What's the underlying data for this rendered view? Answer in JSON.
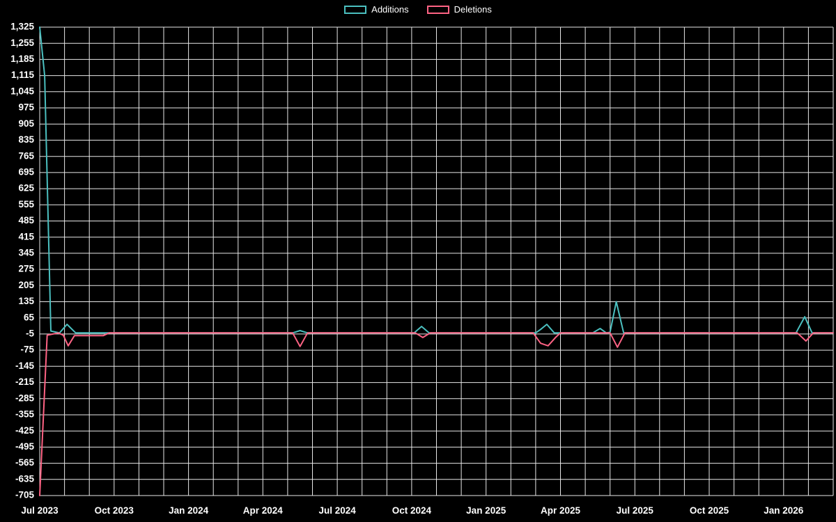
{
  "colors": {
    "background": "#000000",
    "grid": "#e8e8e8",
    "text": "#ffffff",
    "additions": "#4bc0c0",
    "deletions": "#ff6384"
  },
  "chart_data": {
    "type": "line",
    "title": "",
    "grid": true,
    "legend_position": "top",
    "grid_color": "#e8e8e8",
    "text_color": "#ffffff",
    "legend": [
      {
        "label": "Additions",
        "color": "#4bc0c0"
      },
      {
        "label": "Deletions",
        "color": "#ff6384"
      }
    ],
    "x_domain": [
      0,
      32
    ],
    "x_axis": {
      "labels": [
        "Jul 2023",
        "Oct 2023",
        "Jan 2024",
        "Apr 2024",
        "Jul 2024",
        "Oct 2024",
        "Jan 2025",
        "Apr 2025",
        "Jul 2025",
        "Oct 2025",
        "Jan 2026"
      ],
      "offsets": [
        0,
        3,
        6,
        9,
        12,
        15,
        18,
        21,
        24,
        27,
        30
      ]
    },
    "y_axis": {
      "min": -705,
      "max": 1325,
      "tick_step": 70,
      "ticks": [
        1325,
        1255,
        1185,
        1115,
        1045,
        975,
        905,
        835,
        765,
        695,
        625,
        555,
        485,
        415,
        345,
        275,
        205,
        135,
        65,
        -5,
        -75,
        -145,
        -215,
        -285,
        -355,
        -425,
        -495,
        -565,
        -635,
        -705
      ]
    },
    "series": [
      {
        "name": "Additions",
        "color": "#4bc0c0",
        "points": [
          [
            0,
            1325
          ],
          [
            0.2,
            1115
          ],
          [
            0.45,
            8
          ],
          [
            0.8,
            0
          ],
          [
            1.1,
            37
          ],
          [
            1.45,
            0
          ],
          [
            10.2,
            0
          ],
          [
            10.5,
            10
          ],
          [
            10.8,
            0
          ],
          [
            15.1,
            0
          ],
          [
            15.4,
            28
          ],
          [
            15.7,
            0
          ],
          [
            20.0,
            0
          ],
          [
            20.2,
            15
          ],
          [
            20.45,
            37
          ],
          [
            20.75,
            0
          ],
          [
            22.3,
            0
          ],
          [
            22.6,
            19
          ],
          [
            22.85,
            0
          ],
          [
            23.0,
            3
          ],
          [
            23.25,
            135
          ],
          [
            23.55,
            0
          ],
          [
            30.5,
            0
          ],
          [
            30.85,
            70
          ],
          [
            31.15,
            0
          ],
          [
            32,
            0
          ]
        ]
      },
      {
        "name": "Deletions",
        "color": "#ff6384",
        "points": [
          [
            0,
            -705
          ],
          [
            0.3,
            -10
          ],
          [
            0.75,
            0
          ],
          [
            0.95,
            -10
          ],
          [
            1.15,
            -56
          ],
          [
            1.4,
            -12
          ],
          [
            1.77,
            -12
          ],
          [
            2.56,
            -12
          ],
          [
            2.8,
            0
          ],
          [
            10.2,
            0
          ],
          [
            10.5,
            -59
          ],
          [
            10.8,
            0
          ],
          [
            15.15,
            0
          ],
          [
            15.45,
            -20
          ],
          [
            15.75,
            0
          ],
          [
            19.9,
            0
          ],
          [
            20.2,
            -45
          ],
          [
            20.5,
            -56
          ],
          [
            20.8,
            -20
          ],
          [
            21.0,
            0
          ],
          [
            23.0,
            0
          ],
          [
            23.3,
            -62
          ],
          [
            23.6,
            0
          ],
          [
            30.55,
            0
          ],
          [
            30.9,
            -35
          ],
          [
            31.2,
            0
          ],
          [
            32,
            0
          ]
        ]
      }
    ]
  }
}
